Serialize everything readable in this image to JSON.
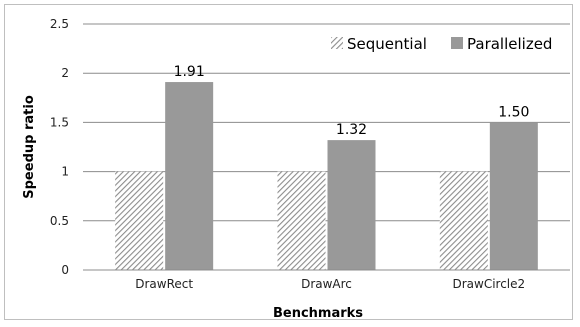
{
  "chart_data": {
    "type": "bar",
    "categories": [
      "DrawRect",
      "DrawArc",
      "DrawCircle2"
    ],
    "series": [
      {
        "name": "Sequential",
        "values": [
          1,
          1,
          1
        ],
        "color": "#a0a0a0",
        "pattern": "diagonal-hatch"
      },
      {
        "name": "Parallelized",
        "values": [
          1.91,
          1.32,
          1.5
        ],
        "color": "#999999",
        "pattern": "solid"
      }
    ],
    "data_labels": [
      "1.91",
      "1.32",
      "1.50"
    ],
    "xlabel": "Benchmarks",
    "ylabel": "Speedup ratio",
    "ylim": [
      0,
      2.5
    ],
    "yticks": [
      "0",
      "0.5",
      "1",
      "1.5",
      "2",
      "2.5"
    ],
    "grid": true,
    "legend_position": "top-right"
  }
}
